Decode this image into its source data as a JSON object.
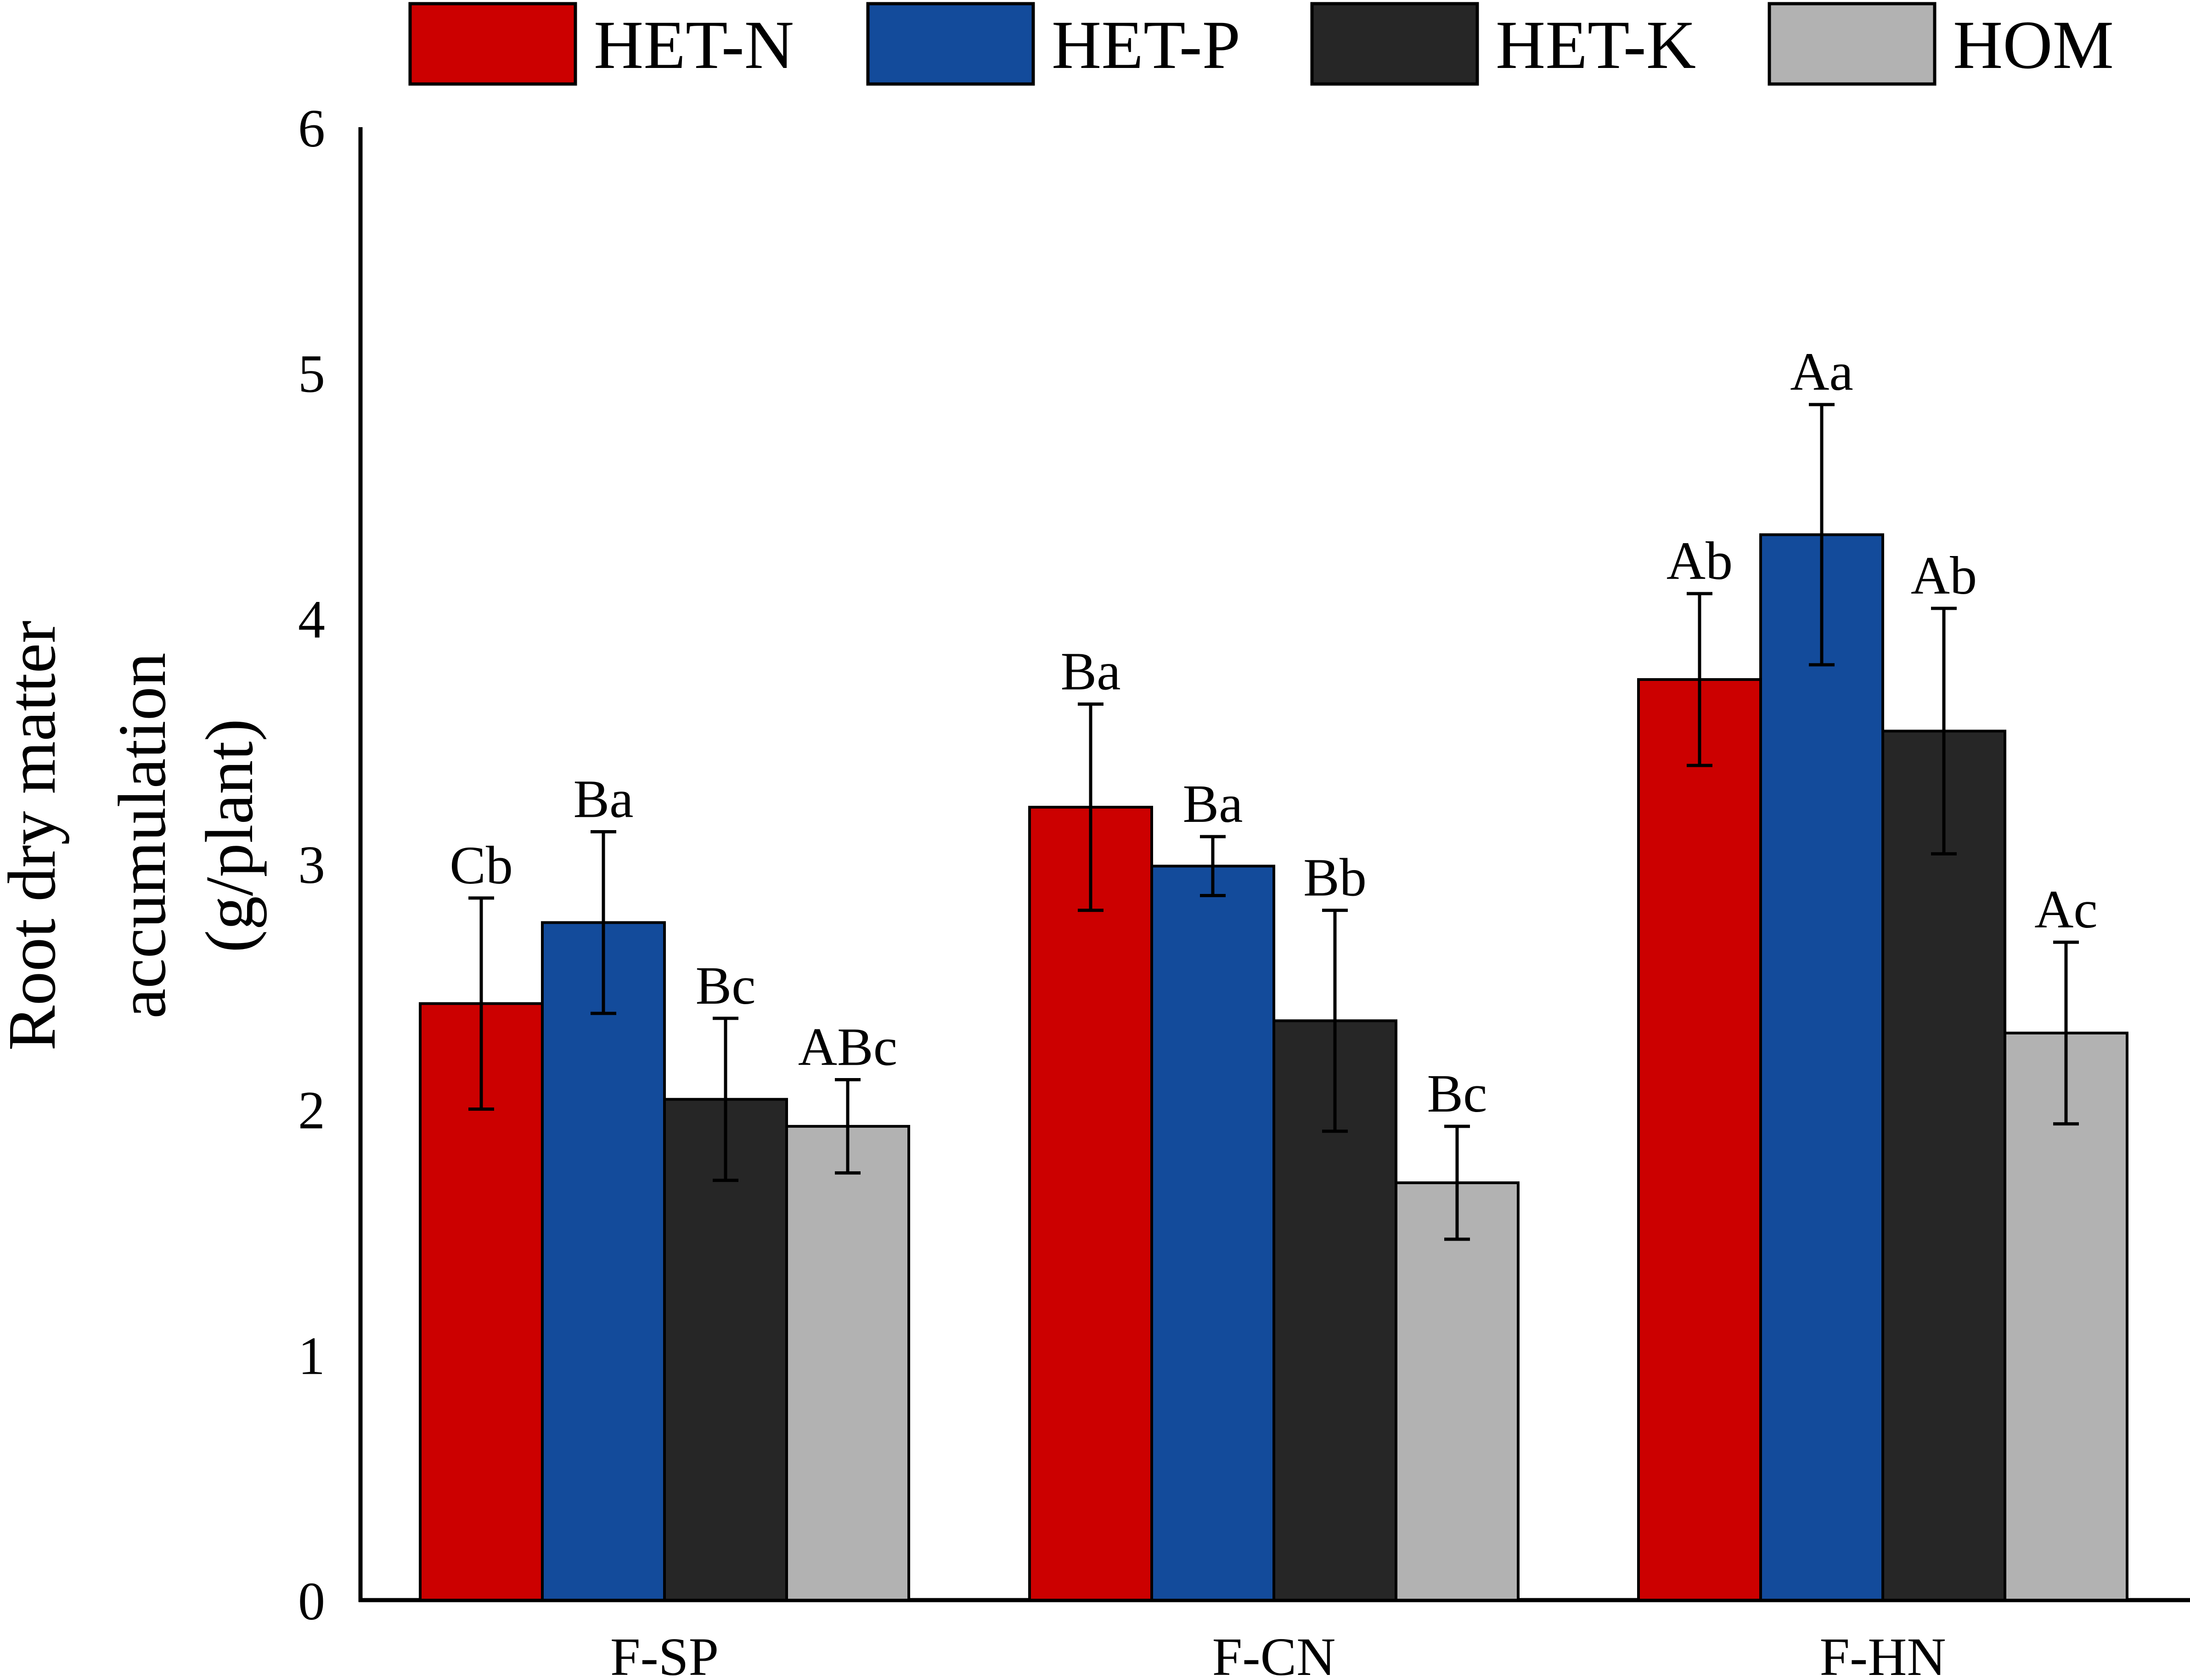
{
  "chart_data": {
    "type": "bar",
    "title": "",
    "xlabel": "",
    "ylabel_lines": [
      "Root dry matter",
      "accumulation",
      "(g/plant)"
    ],
    "ylim": [
      0,
      6
    ],
    "yticks": [
      0,
      1,
      2,
      3,
      4,
      5,
      6
    ],
    "ytick_labels": [
      "0",
      "1",
      "2",
      "3",
      "4",
      "5",
      "6"
    ],
    "grid": false,
    "legend_position": "top",
    "categories": [
      "F-SP",
      "F-CN",
      "F-HN"
    ],
    "series": [
      {
        "name": "HET-N",
        "color": "#cc0000",
        "values": [
          2.43,
          3.23,
          3.75
        ],
        "errors": [
          0.43,
          0.42,
          0.35
        ],
        "labels": [
          "Cb",
          "Ba",
          "Ab"
        ]
      },
      {
        "name": "HET-P",
        "color": "#134b9b",
        "values": [
          2.76,
          2.99,
          4.34
        ],
        "errors": [
          0.37,
          0.12,
          0.53
        ],
        "labels": [
          "Ba",
          "Ba",
          "Aa"
        ]
      },
      {
        "name": "HET-K",
        "color": "#262626",
        "values": [
          2.04,
          2.36,
          3.54
        ],
        "errors": [
          0.33,
          0.45,
          0.5
        ],
        "labels": [
          "Bc",
          "Bb",
          "Ab"
        ]
      },
      {
        "name": "HOM",
        "color": "#b2b2b2",
        "values": [
          1.93,
          1.7,
          2.31
        ],
        "errors": [
          0.19,
          0.23,
          0.37
        ],
        "labels": [
          "ABc",
          "Bc",
          "Ac"
        ]
      }
    ]
  }
}
